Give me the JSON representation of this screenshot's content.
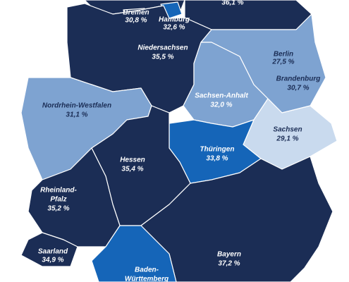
{
  "regions": [
    {
      "value": "36,1 %",
      "color": "#1b2d55",
      "text_color": "#ffffff"
    },
    {
      "name_lines": [
        "Bremen"
      ],
      "value": "30,8 %",
      "color": "#1b2d55",
      "text_color": "#ffffff"
    },
    {
      "name_lines": [
        "Hamburg"
      ],
      "value": "32,6 %",
      "color": "#1565b8",
      "text_color": "#ffffff"
    },
    {
      "name_lines": [
        "Niedersachsen"
      ],
      "value": "35,5 %",
      "color": "#1b2d55",
      "text_color": "#ffffff"
    },
    {
      "name_lines": [
        "Berlin"
      ],
      "value": "27,5 %",
      "color": "#7ea3d1",
      "text_color": "#1b2d55"
    },
    {
      "name_lines": [
        "Brandenburg"
      ],
      "value": "30,7 %",
      "color": "#7ea3d1",
      "text_color": "#1b2d55"
    },
    {
      "name_lines": [
        "Sachsen-Anhalt"
      ],
      "value": "32,0 %",
      "color": "#7ea3d1",
      "text_color": "#ffffff"
    },
    {
      "name_lines": [
        "Nordrhein-Westfalen"
      ],
      "value": "31,1 %",
      "color": "#7ea3d1",
      "text_color": "#1b2d55"
    },
    {
      "name_lines": [
        "Sachsen"
      ],
      "value": "29,1 %",
      "color": "#c9daee",
      "text_color": "#1b2d55"
    },
    {
      "name_lines": [
        "Thüringen"
      ],
      "value": "33,8 %",
      "color": "#1565b8",
      "text_color": "#ffffff"
    },
    {
      "name_lines": [
        "Hessen"
      ],
      "value": "35,4 %",
      "color": "#1b2d55",
      "text_color": "#ffffff"
    },
    {
      "name_lines": [
        "Rheinland-",
        "Pfalz"
      ],
      "value": "35,2 %",
      "color": "#1b2d55",
      "text_color": "#ffffff"
    },
    {
      "name_lines": [
        "Saarland"
      ],
      "value": "34,9 %",
      "color": "#1b2d55",
      "text_color": "#ffffff"
    },
    {
      "name_lines": [
        "Bayern"
      ],
      "value": "37,2 %",
      "color": "#1b2d55",
      "text_color": "#ffffff"
    },
    {
      "name_lines": [
        "Baden-",
        "Württemberg"
      ],
      "value": "",
      "color": "#1565b8",
      "text_color": "#ffffff"
    }
  ]
}
